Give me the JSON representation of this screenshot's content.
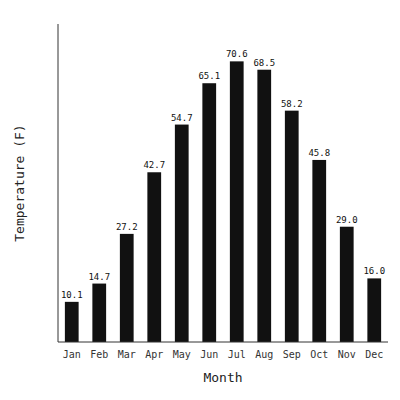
{
  "chart_data": {
    "type": "bar",
    "xlabel": "Month",
    "ylabel": "Temperature (F)",
    "categories": [
      "Jan",
      "Feb",
      "Mar",
      "Apr",
      "May",
      "Jun",
      "Jul",
      "Aug",
      "Sep",
      "Oct",
      "Nov",
      "Dec"
    ],
    "values": [
      10.1,
      14.7,
      27.2,
      42.7,
      54.7,
      65.1,
      70.6,
      68.5,
      58.2,
      45.8,
      29.0,
      16.0
    ],
    "value_labels": [
      "10.1",
      "14.7",
      "27.2",
      "42.7",
      "54.7",
      "65.1",
      "70.6",
      "68.5",
      "58.2",
      "45.8",
      "29.0",
      "16.0"
    ],
    "color": "#111111",
    "ylim": [
      0,
      80
    ],
    "data_labels": true,
    "tick_labels": "x"
  }
}
